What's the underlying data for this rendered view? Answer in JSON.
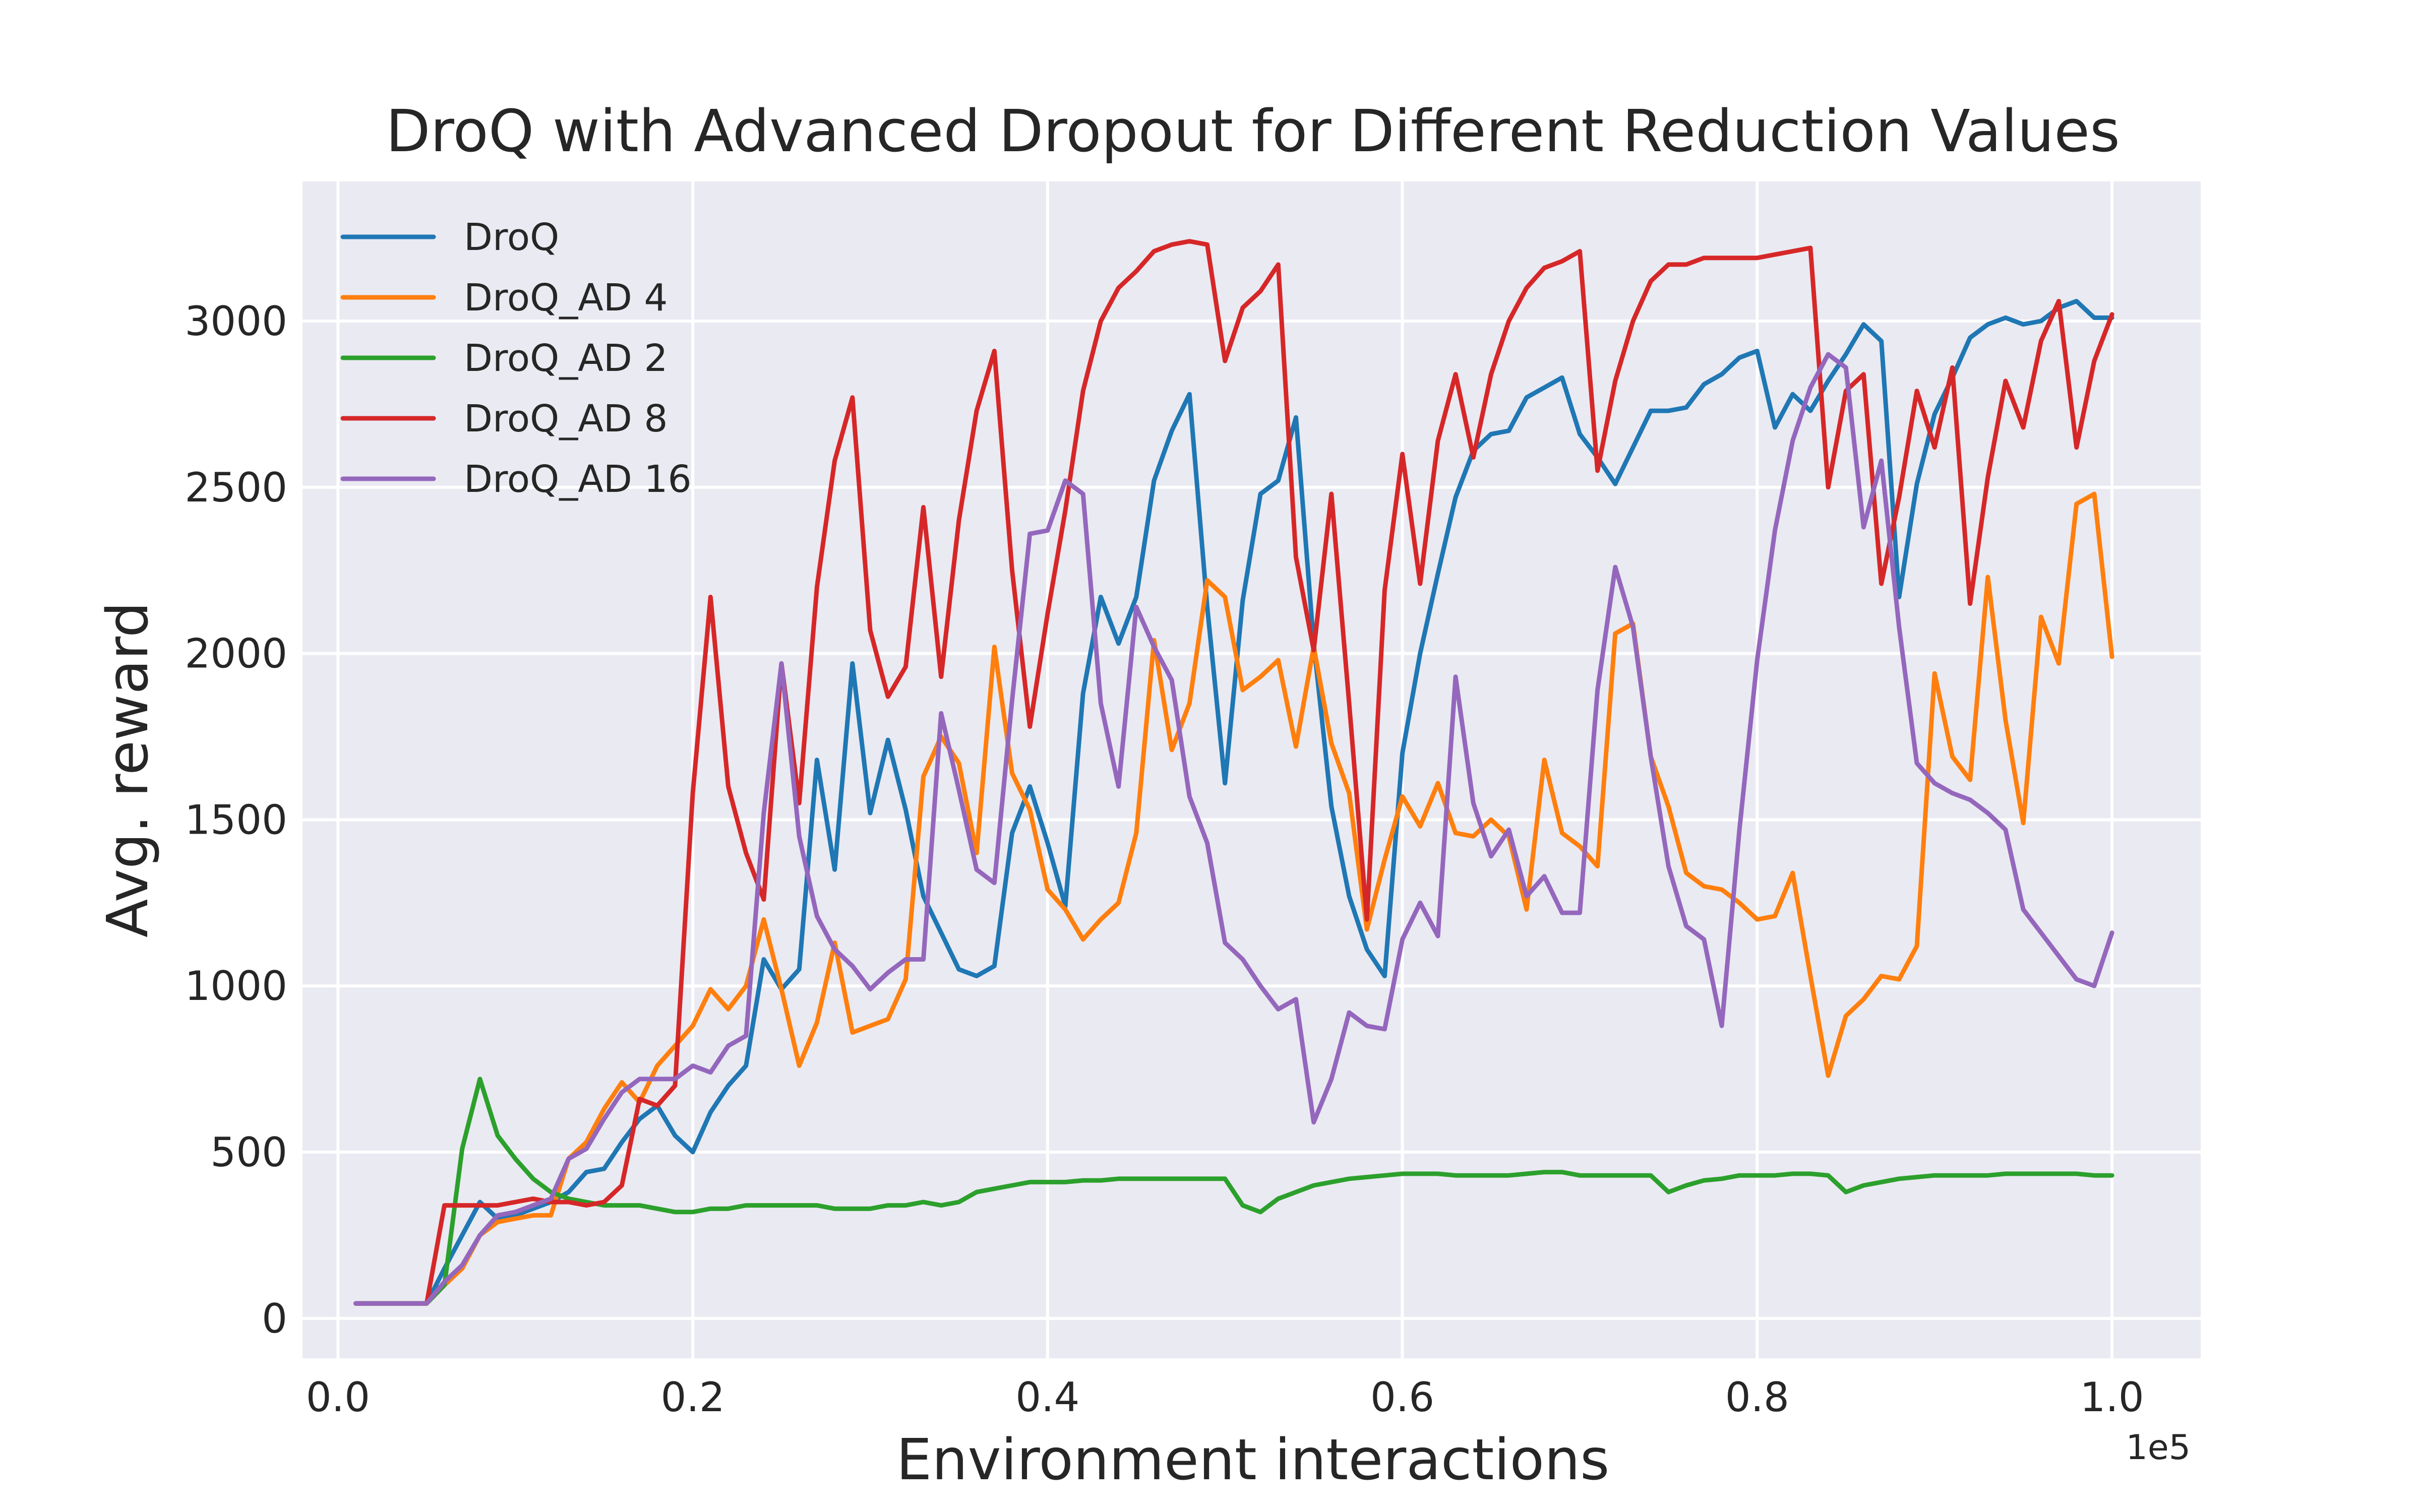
{
  "chart_data": {
    "type": "line",
    "title": "DroQ with Advanced Dropout for Different Reduction Values",
    "xlabel": "Environment interactions",
    "ylabel": "Avg. reward",
    "x_offset_label": "1e5",
    "xlim": [
      -0.02,
      1.05
    ],
    "ylim": [
      -120,
      3420
    ],
    "xticks": [
      0.0,
      0.2,
      0.4,
      0.6,
      0.8,
      1.0
    ],
    "xtick_labels": [
      "0.0",
      "0.2",
      "0.4",
      "0.6",
      "0.8",
      "1.0"
    ],
    "yticks": [
      0,
      500,
      1000,
      1500,
      2000,
      2500,
      3000
    ],
    "ytick_labels": [
      "0",
      "500",
      "1000",
      "1500",
      "2000",
      "2500",
      "3000"
    ],
    "grid": true,
    "legend_position": "upper-left",
    "x": [
      0.01,
      0.02,
      0.03,
      0.04,
      0.05,
      0.06,
      0.07,
      0.08,
      0.09,
      0.1,
      0.11,
      0.12,
      0.13,
      0.14,
      0.15,
      0.16,
      0.17,
      0.18,
      0.19,
      0.2,
      0.21,
      0.22,
      0.23,
      0.24,
      0.25,
      0.26,
      0.27,
      0.28,
      0.29,
      0.3,
      0.31,
      0.32,
      0.33,
      0.34,
      0.35,
      0.36,
      0.37,
      0.38,
      0.39,
      0.4,
      0.41,
      0.42,
      0.43,
      0.44,
      0.45,
      0.46,
      0.47,
      0.48,
      0.49,
      0.5,
      0.51,
      0.52,
      0.53,
      0.54,
      0.55,
      0.56,
      0.57,
      0.58,
      0.59,
      0.6,
      0.61,
      0.62,
      0.63,
      0.64,
      0.65,
      0.66,
      0.67,
      0.68,
      0.69,
      0.7,
      0.71,
      0.72,
      0.73,
      0.74,
      0.75,
      0.76,
      0.77,
      0.78,
      0.79,
      0.8,
      0.81,
      0.82,
      0.83,
      0.84,
      0.85,
      0.86,
      0.87,
      0.88,
      0.89,
      0.9,
      0.91,
      0.92,
      0.93,
      0.94,
      0.95,
      0.96,
      0.97,
      0.98,
      0.99,
      1.0
    ],
    "series": [
      {
        "name": "DroQ",
        "color": "#1f77b4",
        "values": [
          45,
          45,
          45,
          45,
          45,
          150,
          250,
          350,
          300,
          310,
          330,
          350,
          380,
          440,
          450,
          530,
          600,
          640,
          550,
          500,
          620,
          700,
          760,
          1080,
          990,
          1050,
          1680,
          1350,
          1970,
          1520,
          1740,
          1530,
          1270,
          1160,
          1050,
          1030,
          1060,
          1460,
          1600,
          1430,
          1240,
          1880,
          2170,
          2030,
          2170,
          2520,
          2670,
          2780,
          2140,
          1610,
          2160,
          2480,
          2520,
          2710,
          2030,
          1540,
          1270,
          1110,
          1030,
          1700,
          2000,
          2240,
          2470,
          2610,
          2660,
          2670,
          2770,
          2800,
          2830,
          2660,
          2590,
          2510,
          2620,
          2730,
          2730,
          2740,
          2810,
          2840,
          2890,
          2910,
          2680,
          2780,
          2730,
          2820,
          2900,
          2990,
          2940,
          2170,
          2510,
          2720,
          2830,
          2950,
          2990,
          3010,
          2990,
          3000,
          3040,
          3060,
          3010,
          3010
        ]
      },
      {
        "name": "DroQ_AD 4",
        "color": "#ff7f0e",
        "values": [
          45,
          45,
          45,
          45,
          45,
          100,
          150,
          250,
          290,
          300,
          310,
          310,
          480,
          530,
          630,
          710,
          650,
          760,
          820,
          880,
          990,
          930,
          1000,
          1200,
          990,
          760,
          890,
          1130,
          860,
          880,
          900,
          1020,
          1630,
          1750,
          1670,
          1400,
          2020,
          1640,
          1530,
          1290,
          1230,
          1140,
          1200,
          1250,
          1460,
          2040,
          1710,
          1850,
          2220,
          2170,
          1890,
          1930,
          1980,
          1720,
          2020,
          1730,
          1580,
          1170,
          1380,
          1570,
          1480,
          1610,
          1460,
          1450,
          1500,
          1450,
          1230,
          1680,
          1460,
          1420,
          1360,
          2060,
          2090,
          1690,
          1540,
          1340,
          1300,
          1290,
          1250,
          1200,
          1210,
          1340,
          1030,
          730,
          910,
          960,
          1030,
          1020,
          1120,
          1940,
          1690,
          1620,
          2230,
          1800,
          1490,
          2110,
          1970,
          2450,
          2480,
          1990
        ]
      },
      {
        "name": "DroQ_AD 2",
        "color": "#2ca02c",
        "values": [
          45,
          45,
          45,
          45,
          45,
          100,
          510,
          720,
          550,
          480,
          420,
          380,
          360,
          350,
          340,
          340,
          340,
          330,
          320,
          320,
          330,
          330,
          340,
          340,
          340,
          340,
          340,
          330,
          330,
          330,
          340,
          340,
          350,
          340,
          350,
          380,
          390,
          400,
          410,
          410,
          410,
          415,
          415,
          420,
          420,
          420,
          420,
          420,
          420,
          420,
          340,
          320,
          360,
          380,
          400,
          410,
          420,
          425,
          430,
          435,
          435,
          435,
          430,
          430,
          430,
          430,
          435,
          440,
          440,
          430,
          430,
          430,
          430,
          430,
          380,
          400,
          415,
          420,
          430,
          430,
          430,
          435,
          435,
          430,
          380,
          400,
          410,
          420,
          425,
          430,
          430,
          430,
          430,
          435,
          435,
          435,
          435,
          435,
          430,
          430
        ]
      },
      {
        "name": "DroQ_AD 8",
        "color": "#d62728",
        "values": [
          45,
          45,
          45,
          45,
          45,
          340,
          340,
          340,
          340,
          350,
          360,
          350,
          350,
          340,
          350,
          400,
          660,
          640,
          700,
          1580,
          2170,
          1600,
          1400,
          1260,
          1970,
          1550,
          2200,
          2580,
          2770,
          2070,
          1870,
          1960,
          2440,
          1930,
          2400,
          2730,
          2910,
          2250,
          1780,
          2120,
          2430,
          2790,
          3000,
          3100,
          3150,
          3210,
          3230,
          3240,
          3230,
          2880,
          3040,
          3090,
          3170,
          2290,
          2010,
          2480,
          1850,
          1200,
          2190,
          2600,
          2210,
          2640,
          2840,
          2590,
          2840,
          3000,
          3100,
          3160,
          3180,
          3210,
          2550,
          2820,
          3000,
          3120,
          3170,
          3170,
          3190,
          3190,
          3190,
          3190,
          3200,
          3210,
          3220,
          2500,
          2790,
          2840,
          2210,
          2470,
          2790,
          2620,
          2860,
          2150,
          2530,
          2820,
          2680,
          2940,
          3060,
          2620,
          2880,
          3020
        ]
      },
      {
        "name": "DroQ_AD 16",
        "color": "#9467bd",
        "values": [
          45,
          45,
          45,
          45,
          45,
          110,
          160,
          250,
          310,
          320,
          340,
          360,
          480,
          510,
          600,
          680,
          720,
          720,
          720,
          760,
          740,
          820,
          850,
          1520,
          1970,
          1450,
          1210,
          1110,
          1060,
          990,
          1040,
          1080,
          1080,
          1820,
          1590,
          1350,
          1310,
          1860,
          2360,
          2370,
          2520,
          2480,
          1850,
          1600,
          2140,
          2020,
          1920,
          1570,
          1430,
          1130,
          1080,
          1000,
          930,
          960,
          590,
          720,
          920,
          880,
          870,
          1140,
          1250,
          1150,
          1930,
          1550,
          1390,
          1470,
          1270,
          1330,
          1220,
          1220,
          1890,
          2260,
          2080,
          1690,
          1360,
          1180,
          1140,
          880,
          1470,
          1980,
          2370,
          2640,
          2800,
          2900,
          2860,
          2380,
          2580,
          2080,
          1670,
          1610,
          1580,
          1560,
          1520,
          1470,
          1230,
          1160,
          1090,
          1020,
          1000,
          1160
        ]
      }
    ]
  }
}
